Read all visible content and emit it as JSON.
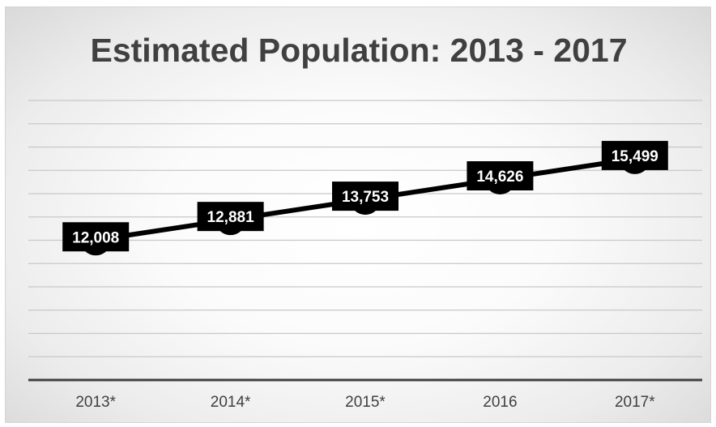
{
  "chart_data": {
    "type": "line",
    "title": "Estimated Population: 2013 - 2017",
    "xlabel": "",
    "ylabel": "",
    "categories": [
      "2013*",
      "2014*",
      "2015*",
      "2016",
      "2017*"
    ],
    "series": [
      {
        "values": [
          12008,
          12881,
          13753,
          14626,
          15499
        ],
        "labels": [
          "12,008",
          "12,881",
          "13,753",
          "14,626",
          "15,499"
        ]
      }
    ],
    "ylim": [
      6000,
      18000
    ],
    "ystep": 1000,
    "grid": true,
    "legend": "none",
    "colors": {
      "line": "#000000",
      "marker": "#000000",
      "label_bg": "#000000",
      "label_text": "#ffffff",
      "grid": "#c8c8c8",
      "axis": "#404040",
      "title": "#404040"
    }
  }
}
